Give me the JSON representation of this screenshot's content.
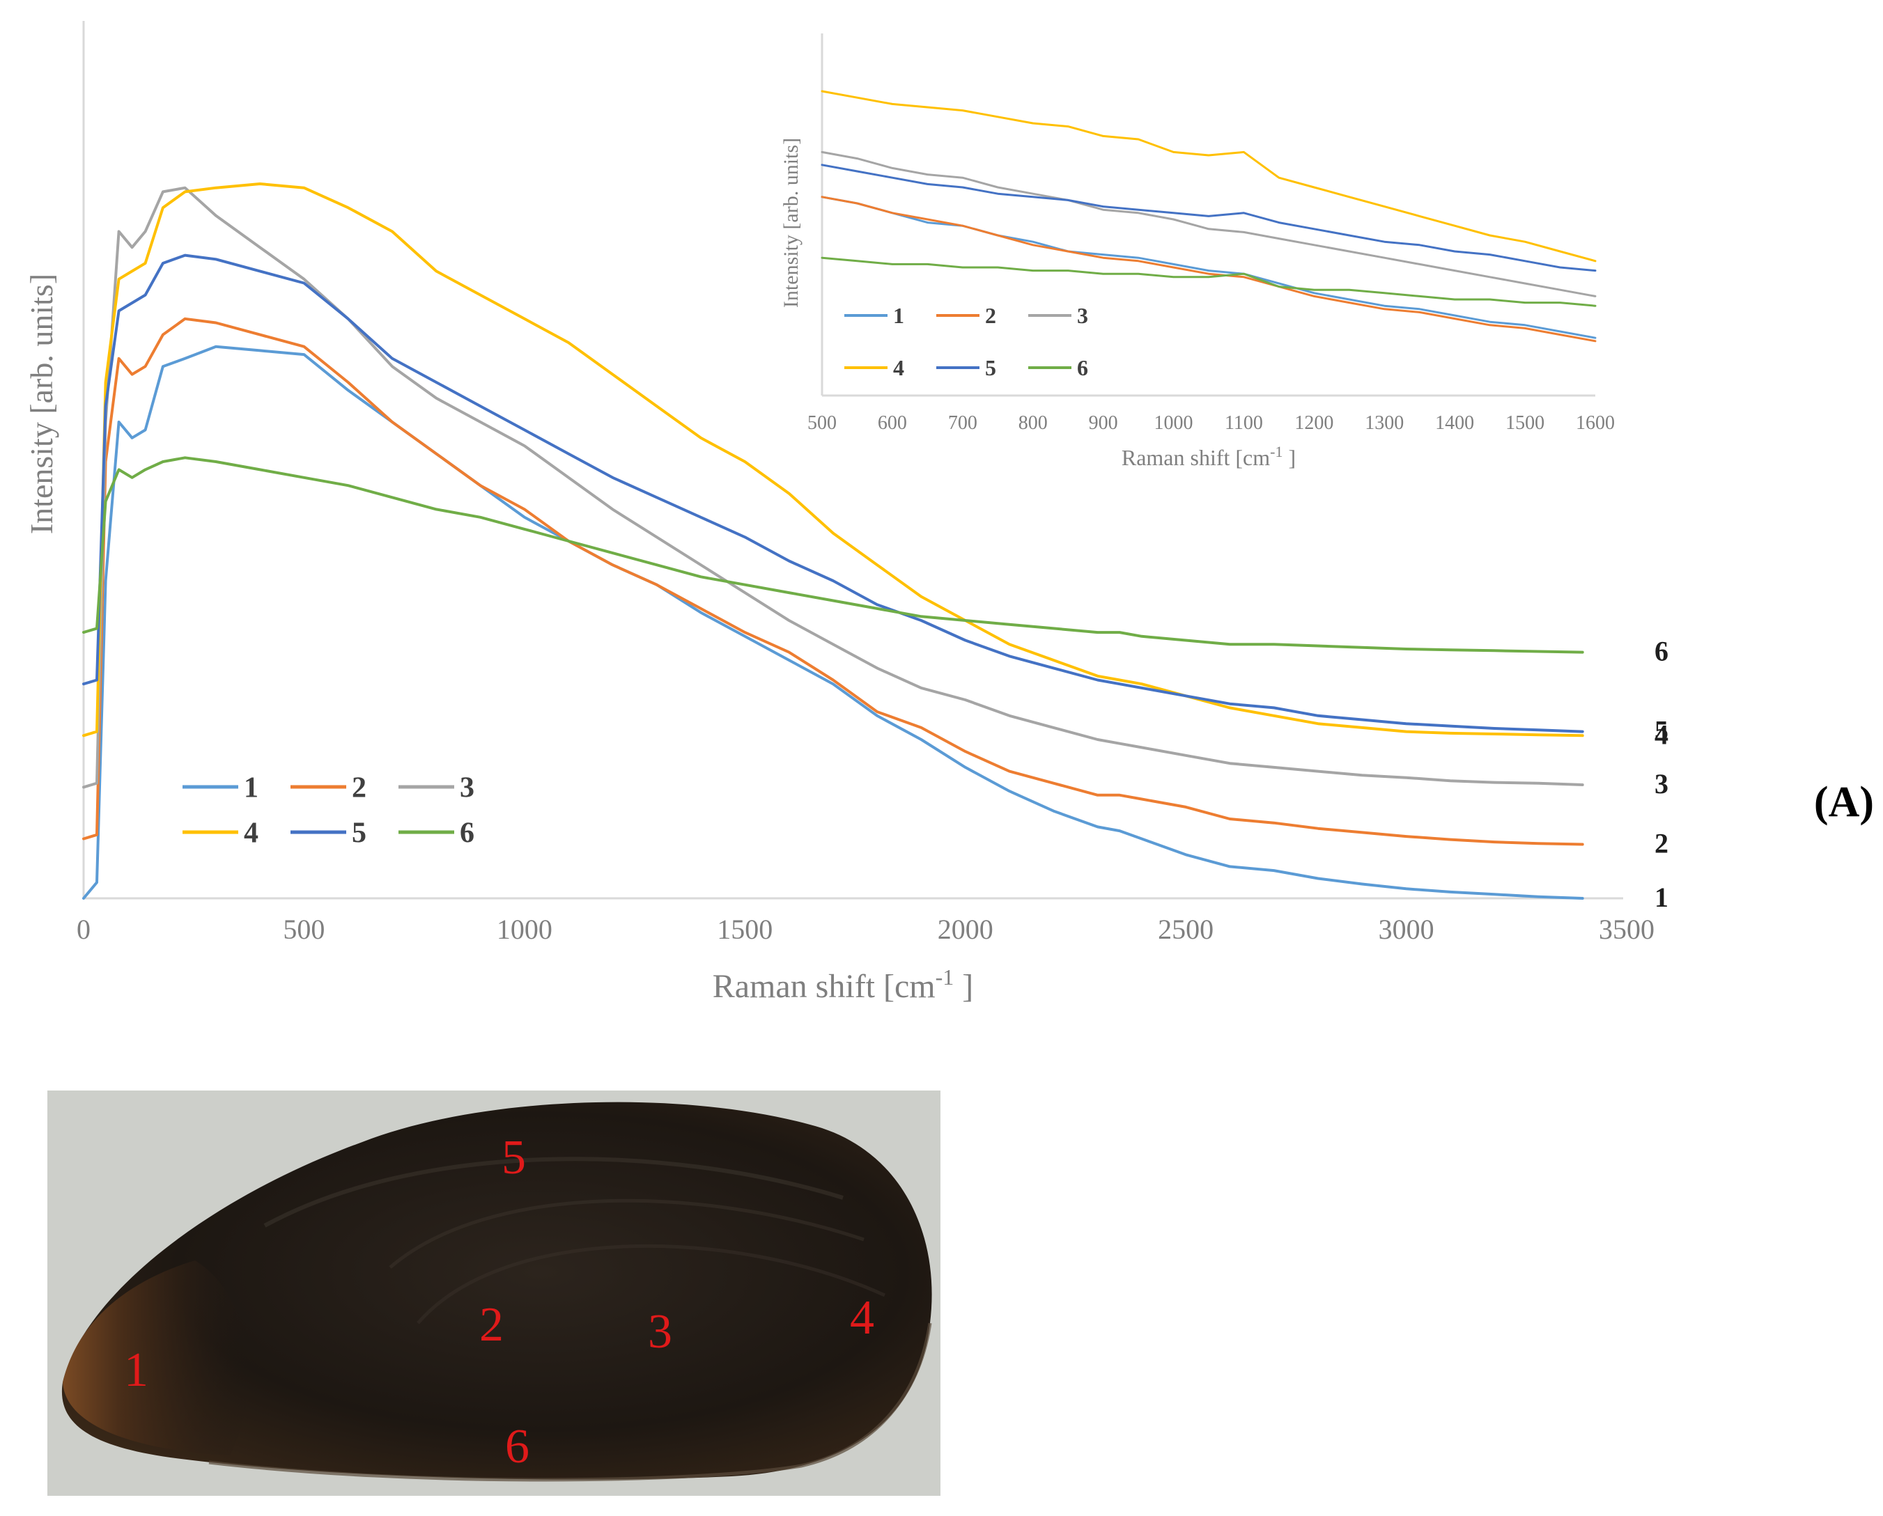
{
  "panel_label": "(A)",
  "chart_data": [
    {
      "type": "line",
      "id": "main",
      "title": "",
      "xlabel_main": "Raman shift [cm",
      "xlabel_sup": "-1",
      "xlabel_end": " ]",
      "ylabel": "Intensity [arb. units]",
      "xlim": [
        0,
        3500
      ],
      "ylim": [
        0,
        100
      ],
      "x_ticks": [
        0,
        500,
        1000,
        1500,
        2000,
        2500,
        3000,
        3500
      ],
      "x_tick_labels": [
        "0",
        "500",
        "1000",
        "1500",
        "2000",
        "2500",
        "3000",
        "3500"
      ],
      "grid": false,
      "legend": {
        "position": "bottom-left",
        "entries": [
          "1",
          "2",
          "3",
          "4",
          "5",
          "6"
        ]
      },
      "end_labels": [
        "1",
        "2",
        "3",
        "4",
        "5",
        "6"
      ],
      "series": [
        {
          "name": "1",
          "color": "#5b9bd5",
          "x": [
            0,
            30,
            50,
            80,
            110,
            140,
            180,
            230,
            300,
            400,
            500,
            600,
            700,
            800,
            900,
            1000,
            1100,
            1200,
            1300,
            1400,
            1500,
            1600,
            1700,
            1800,
            1900,
            2000,
            2100,
            2200,
            2300,
            2350,
            2400,
            2500,
            2600,
            2700,
            2800,
            2900,
            3000,
            3100,
            3200,
            3300,
            3400
          ],
          "y": [
            0,
            2,
            40,
            60,
            58,
            59,
            67,
            68,
            69.5,
            69,
            68.5,
            64,
            60,
            56,
            52,
            48,
            45,
            42,
            39.5,
            36,
            33,
            30,
            27,
            23,
            20,
            16.5,
            13.5,
            11,
            9,
            8.5,
            7.5,
            5.5,
            4,
            3.5,
            2.5,
            1.8,
            1.2,
            0.8,
            0.5,
            0.2,
            0
          ]
        },
        {
          "name": "2",
          "color": "#ed7d31",
          "x": [
            0,
            30,
            50,
            80,
            110,
            140,
            180,
            230,
            300,
            400,
            500,
            600,
            700,
            800,
            900,
            1000,
            1100,
            1200,
            1300,
            1400,
            1500,
            1600,
            1700,
            1800,
            1900,
            2000,
            2100,
            2200,
            2300,
            2350,
            2400,
            2500,
            2600,
            2700,
            2800,
            2900,
            3000,
            3100,
            3200,
            3300,
            3400
          ],
          "y": [
            7.5,
            8,
            55,
            68,
            66,
            67,
            71,
            73,
            72.5,
            71,
            69.5,
            65,
            60,
            56,
            52,
            49,
            45,
            42,
            39.5,
            36.5,
            33.5,
            31,
            27.5,
            23.5,
            21.5,
            18.5,
            16,
            14.5,
            13,
            13,
            12.5,
            11.5,
            10,
            9.5,
            8.8,
            8.3,
            7.8,
            7.4,
            7.1,
            6.9,
            6.8
          ]
        },
        {
          "name": "3",
          "color": "#a5a5a5",
          "x": [
            0,
            30,
            50,
            80,
            110,
            140,
            180,
            230,
            300,
            400,
            500,
            600,
            700,
            800,
            900,
            1000,
            1100,
            1200,
            1300,
            1400,
            1500,
            1600,
            1700,
            1800,
            1900,
            2000,
            2100,
            2200,
            2300,
            2350,
            2400,
            2500,
            2600,
            2700,
            2800,
            2900,
            3000,
            3100,
            3200,
            3300,
            3400
          ],
          "y": [
            14,
            14.5,
            60,
            84,
            82,
            84,
            89,
            89.5,
            86,
            82,
            78,
            73,
            67,
            63,
            60,
            57,
            53,
            49,
            45.5,
            42,
            38.5,
            35,
            32,
            29,
            26.5,
            25,
            23,
            21.5,
            20,
            19.5,
            19,
            18,
            17,
            16.5,
            16,
            15.5,
            15.2,
            14.8,
            14.6,
            14.5,
            14.3
          ]
        },
        {
          "name": "4",
          "color": "#ffc000",
          "x": [
            0,
            30,
            50,
            80,
            110,
            140,
            180,
            230,
            300,
            400,
            500,
            600,
            700,
            800,
            900,
            1000,
            1100,
            1200,
            1300,
            1400,
            1500,
            1600,
            1700,
            1800,
            1900,
            2000,
            2100,
            2200,
            2300,
            2350,
            2400,
            2500,
            2600,
            2700,
            2800,
            2900,
            3000,
            3100,
            3200,
            3300,
            3400
          ],
          "y": [
            20.5,
            21,
            65,
            78,
            79,
            80,
            87,
            89,
            89.5,
            90,
            89.5,
            87,
            84,
            79,
            76,
            73,
            70,
            66,
            62,
            58,
            55,
            51,
            46,
            42,
            38,
            35,
            32,
            30,
            28,
            27.5,
            27,
            25.5,
            24,
            23,
            22,
            21.5,
            21,
            20.8,
            20.7,
            20.6,
            20.5
          ]
        },
        {
          "name": "5",
          "color": "#4472c4",
          "x": [
            0,
            30,
            50,
            80,
            110,
            140,
            180,
            230,
            300,
            400,
            500,
            600,
            700,
            800,
            900,
            1000,
            1100,
            1200,
            1300,
            1400,
            1500,
            1600,
            1700,
            1800,
            1900,
            2000,
            2100,
            2200,
            2300,
            2350,
            2400,
            2500,
            2600,
            2700,
            2800,
            2900,
            3000,
            3100,
            3200,
            3300,
            3400
          ],
          "y": [
            27,
            27.5,
            62,
            74,
            75,
            76,
            80,
            81,
            80.5,
            79,
            77.5,
            73,
            68,
            65,
            62,
            59,
            56,
            53,
            50.5,
            48,
            45.5,
            42.5,
            40,
            37,
            35,
            32.5,
            30.5,
            29,
            27.5,
            27,
            26.5,
            25.5,
            24.5,
            24,
            23,
            22.5,
            22,
            21.7,
            21.4,
            21.2,
            21
          ]
        },
        {
          "name": "6",
          "color": "#70ad47",
          "x": [
            0,
            30,
            50,
            80,
            110,
            140,
            180,
            230,
            300,
            400,
            500,
            600,
            700,
            800,
            900,
            1000,
            1100,
            1200,
            1300,
            1400,
            1500,
            1600,
            1700,
            1800,
            1900,
            2000,
            2100,
            2200,
            2300,
            2350,
            2400,
            2500,
            2600,
            2700,
            2800,
            2900,
            3000,
            3100,
            3200,
            3300,
            3400
          ],
          "y": [
            33.5,
            34,
            50,
            54,
            53,
            54,
            55,
            55.5,
            55,
            54,
            53,
            52,
            50.5,
            49,
            48,
            46.5,
            45,
            43.5,
            42,
            40.5,
            39.5,
            38.5,
            37.5,
            36.5,
            35.5,
            35,
            34.5,
            34,
            33.5,
            33.5,
            33,
            32.5,
            32,
            32,
            31.8,
            31.6,
            31.4,
            31.3,
            31.2,
            31.1,
            31
          ]
        }
      ]
    },
    {
      "type": "line",
      "id": "inset",
      "xlabel_main": "Raman shift [cm",
      "xlabel_sup": "-1",
      "xlabel_end": " ]",
      "ylabel": "Intensity [arb. units]",
      "xlim": [
        500,
        1600
      ],
      "ylim": [
        0,
        100
      ],
      "x_ticks": [
        500,
        600,
        700,
        800,
        900,
        1000,
        1100,
        1200,
        1300,
        1400,
        1500,
        1600
      ],
      "x_tick_labels": [
        "500",
        "600",
        "700",
        "800",
        "900",
        "1000",
        "1100",
        "1200",
        "1300",
        "1400",
        "1500",
        "1600"
      ],
      "grid": false,
      "legend": {
        "position": "bottom-left",
        "entries": [
          "1",
          "2",
          "3",
          "4",
          "5",
          "6"
        ]
      },
      "series": [
        {
          "name": "1",
          "color": "#5b9bd5",
          "x": [
            500,
            550,
            600,
            650,
            700,
            750,
            800,
            850,
            900,
            950,
            1000,
            1050,
            1100,
            1150,
            1200,
            1250,
            1300,
            1350,
            1400,
            1450,
            1500,
            1550,
            1600
          ],
          "y": [
            62,
            60,
            57,
            54,
            53,
            50,
            48,
            45,
            44,
            43,
            41,
            39,
            38,
            35,
            32,
            30,
            28,
            27,
            25,
            23,
            22,
            20,
            18
          ]
        },
        {
          "name": "2",
          "color": "#ed7d31",
          "x": [
            500,
            550,
            600,
            650,
            700,
            750,
            800,
            850,
            900,
            950,
            1000,
            1050,
            1100,
            1150,
            1200,
            1250,
            1300,
            1350,
            1400,
            1450,
            1500,
            1550,
            1600
          ],
          "y": [
            62,
            60,
            57,
            55,
            53,
            50,
            47,
            45,
            43,
            42,
            40,
            38,
            37,
            34,
            31,
            29,
            27,
            26,
            24,
            22,
            21,
            19,
            17
          ]
        },
        {
          "name": "3",
          "color": "#a5a5a5",
          "x": [
            500,
            550,
            600,
            650,
            700,
            750,
            800,
            850,
            900,
            950,
            1000,
            1050,
            1100,
            1150,
            1200,
            1250,
            1300,
            1350,
            1400,
            1450,
            1500,
            1550,
            1600
          ],
          "y": [
            76,
            74,
            71,
            69,
            68,
            65,
            63,
            61,
            58,
            57,
            55,
            52,
            51,
            49,
            47,
            45,
            43,
            41,
            39,
            37,
            35,
            33,
            31
          ]
        },
        {
          "name": "4",
          "color": "#ffc000",
          "x": [
            500,
            550,
            600,
            650,
            700,
            750,
            800,
            850,
            900,
            950,
            1000,
            1050,
            1100,
            1150,
            1200,
            1250,
            1300,
            1350,
            1400,
            1450,
            1500,
            1550,
            1600
          ],
          "y": [
            95,
            93,
            91,
            90,
            89,
            87,
            85,
            84,
            81,
            80,
            76,
            75,
            76,
            68,
            65,
            62,
            59,
            56,
            53,
            50,
            48,
            45,
            42
          ]
        },
        {
          "name": "5",
          "color": "#4472c4",
          "x": [
            500,
            550,
            600,
            650,
            700,
            750,
            800,
            850,
            900,
            950,
            1000,
            1050,
            1100,
            1150,
            1200,
            1250,
            1300,
            1350,
            1400,
            1450,
            1500,
            1550,
            1600
          ],
          "y": [
            72,
            70,
            68,
            66,
            65,
            63,
            62,
            61,
            59,
            58,
            57,
            56,
            57,
            54,
            52,
            50,
            48,
            47,
            45,
            44,
            42,
            40,
            39
          ]
        },
        {
          "name": "6",
          "color": "#70ad47",
          "x": [
            500,
            550,
            600,
            650,
            700,
            750,
            800,
            850,
            900,
            950,
            1000,
            1050,
            1100,
            1150,
            1200,
            1250,
            1300,
            1350,
            1400,
            1450,
            1500,
            1550,
            1600
          ],
          "y": [
            43,
            42,
            41,
            41,
            40,
            40,
            39,
            39,
            38,
            38,
            37,
            37,
            38,
            34,
            33,
            33,
            32,
            31,
            30,
            30,
            29,
            29,
            28
          ]
        }
      ]
    }
  ],
  "photo": {
    "description_label": "mussel-shell-photo",
    "shell_colors": {
      "background": "#cfd1cc",
      "shell_dark": "#231c16",
      "shell_edge": "#5a3b22",
      "label_color": "#e01a1a"
    },
    "labels": [
      "1",
      "2",
      "3",
      "4",
      "5",
      "6"
    ]
  }
}
